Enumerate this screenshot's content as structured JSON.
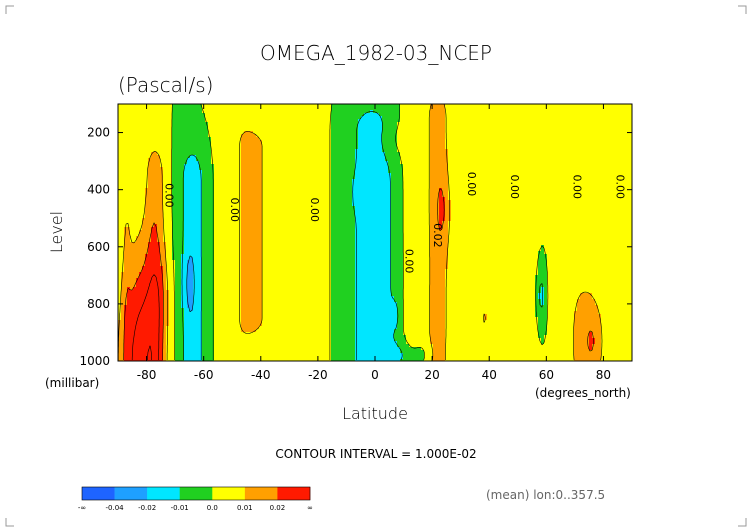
{
  "chart_data": {
    "type": "heatmap",
    "title": "OMEGA_1982-03_NCEP",
    "subtitle": "(Pascal/s)",
    "xlabel": "Latitude",
    "ylabel": "Level",
    "x_unit": "(degrees_north)",
    "y_unit": "(millibar)",
    "xlim": [
      -90,
      90
    ],
    "ylim": [
      1000,
      100
    ],
    "x_ticks": [
      "-80",
      "-60",
      "-40",
      "-20",
      "0",
      "20",
      "40",
      "60",
      "80"
    ],
    "x_tick_values": [
      -80,
      -60,
      -40,
      -20,
      0,
      20,
      40,
      60,
      80
    ],
    "y_ticks": [
      "200",
      "400",
      "600",
      "800",
      "1000"
    ],
    "y_tick_values": [
      200,
      400,
      600,
      800,
      1000
    ],
    "contour_interval_text": "CONTOUR INTERVAL = 1.000E-02",
    "footnote": "(mean) lon:0..357.5",
    "contour_labels": [
      {
        "text": "0.00",
        "lat": -72,
        "lev": 420
      },
      {
        "text": "0.00",
        "lat": -49,
        "lev": 470
      },
      {
        "text": "0.00",
        "lat": -21,
        "lev": 470
      },
      {
        "text": "0.00",
        "lat": 12,
        "lev": 650
      },
      {
        "text": "0.02",
        "lat": 22,
        "lev": 560
      },
      {
        "text": "0.00",
        "lat": 34,
        "lev": 380
      },
      {
        "text": "0.00",
        "lat": 49,
        "lev": 390
      },
      {
        "text": "0.00",
        "lat": 71,
        "lev": 390
      },
      {
        "text": "0.00",
        "lat": 86,
        "lev": 390
      }
    ],
    "colorbar": {
      "labels": [
        "-∞",
        "-0.04",
        "-0.02",
        "-0.01",
        "0.0",
        "0.01",
        "0.02",
        "∞"
      ],
      "colors": [
        "#1e64ff",
        "#1ea0ff",
        "#00e6ff",
        "#20d020",
        "#ffff00",
        "#ffa000",
        "#ff1a00"
      ]
    },
    "levels": [
      -0.02,
      -0.01,
      0.0,
      0.01,
      0.02
    ],
    "background_color": "#20d020",
    "features": [
      {
        "type": "band",
        "lat": -87,
        "w": 1.5,
        "levLo": 100,
        "levHi": 580,
        "sigma": 900,
        "amp": 0.006
      },
      {
        "type": "band",
        "lat": -77,
        "w": 3.5,
        "levLo": 350,
        "levHi": 1000,
        "sigma": 120,
        "amp": 0.0155
      },
      {
        "type": "band",
        "lat": -64,
        "w": 4.5,
        "levLo": 370,
        "levHi": 1000,
        "sigma": 130,
        "amp": -0.0165
      },
      {
        "type": "band",
        "lat": -47,
        "w": 7,
        "levLo": 100,
        "levHi": 1000,
        "sigma": 110,
        "amp": 0.008
      },
      {
        "type": "band",
        "lat": -41,
        "w": 5.5,
        "levLo": 250,
        "levHi": 850,
        "sigma": 70,
        "amp": 0.008
      },
      {
        "type": "band",
        "lat": -23,
        "w": 4.5,
        "levLo": 100,
        "levHi": 1000,
        "sigma": 110,
        "amp": 0.0085
      },
      {
        "type": "band",
        "lat": -0.5,
        "w": 8.5,
        "levLo": 200,
        "levHi": 1000,
        "sigma": 110,
        "amp": -0.0165
      },
      {
        "type": "band",
        "lat": 13,
        "w": 3.5,
        "levLo": 120,
        "levHi": 1000,
        "sigma": 110,
        "amp": 0.0085
      },
      {
        "type": "band",
        "lat": 22,
        "w": 4.2,
        "levLo": 150,
        "levHi": 1000,
        "sigma": 110,
        "amp": 0.016
      },
      {
        "type": "band",
        "lat": 32,
        "w": 3,
        "levLo": 100,
        "levHi": 1000,
        "sigma": 150,
        "amp": 0.0075
      },
      {
        "type": "band",
        "lat": 44,
        "w": 4,
        "levLo": 150,
        "levHi": 1000,
        "sigma": 110,
        "amp": 0.0085
      },
      {
        "type": "band",
        "lat": 55,
        "w": 3,
        "levLo": 120,
        "levHi": 1000,
        "sigma": 110,
        "amp": 0.0085
      },
      {
        "type": "band",
        "lat": 70,
        "w": 9,
        "levLo": 100,
        "levHi": 1000,
        "sigma": 120,
        "amp": 0.009
      },
      {
        "type": "band",
        "lat": 88,
        "w": 2,
        "levLo": 250,
        "levHi": 1000,
        "sigma": 100,
        "amp": 0.006
      },
      {
        "type": "blob",
        "lat": 6,
        "lev": 220,
        "wl": 6,
        "wv": 80,
        "amp": 0.007
      },
      {
        "type": "blob",
        "lat": 12,
        "lev": 980,
        "wl": 8,
        "wv": 50,
        "amp": -0.01
      },
      {
        "type": "blob",
        "lat": -82,
        "lev": 1000,
        "wl": 7,
        "wv": 380,
        "amp": 0.035
      },
      {
        "type": "blob",
        "lat": -75,
        "lev": 760,
        "wl": 3,
        "wv": 150,
        "amp": 0.006
      },
      {
        "type": "blob",
        "lat": -65,
        "lev": 730,
        "wl": 2,
        "wv": 120,
        "amp": -0.008
      },
      {
        "type": "blob",
        "lat": 24,
        "lev": 470,
        "wl": 2.5,
        "wv": 130,
        "amp": 0.008
      },
      {
        "type": "blob",
        "lat": -6,
        "lev": 410,
        "wl": 1.5,
        "wv": 60,
        "amp": -0.008
      },
      {
        "type": "blob",
        "lat": 7,
        "lev": 840,
        "wl": 1.5,
        "wv": 50,
        "amp": -0.008
      },
      {
        "type": "blob",
        "lat": 38,
        "lev": 850,
        "wl": 3,
        "wv": 150,
        "amp": 0.009
      },
      {
        "type": "blob",
        "lat": 58,
        "lev": 770,
        "wl": 2,
        "wv": 150,
        "amp": -0.016
      },
      {
        "type": "blob",
        "lat": 76,
        "lev": 930,
        "wl": 4,
        "wv": 140,
        "amp": 0.015
      },
      {
        "type": "blob",
        "lat": 15,
        "lev": 680,
        "wl": 3,
        "wv": 120,
        "amp": -0.004
      }
    ]
  }
}
